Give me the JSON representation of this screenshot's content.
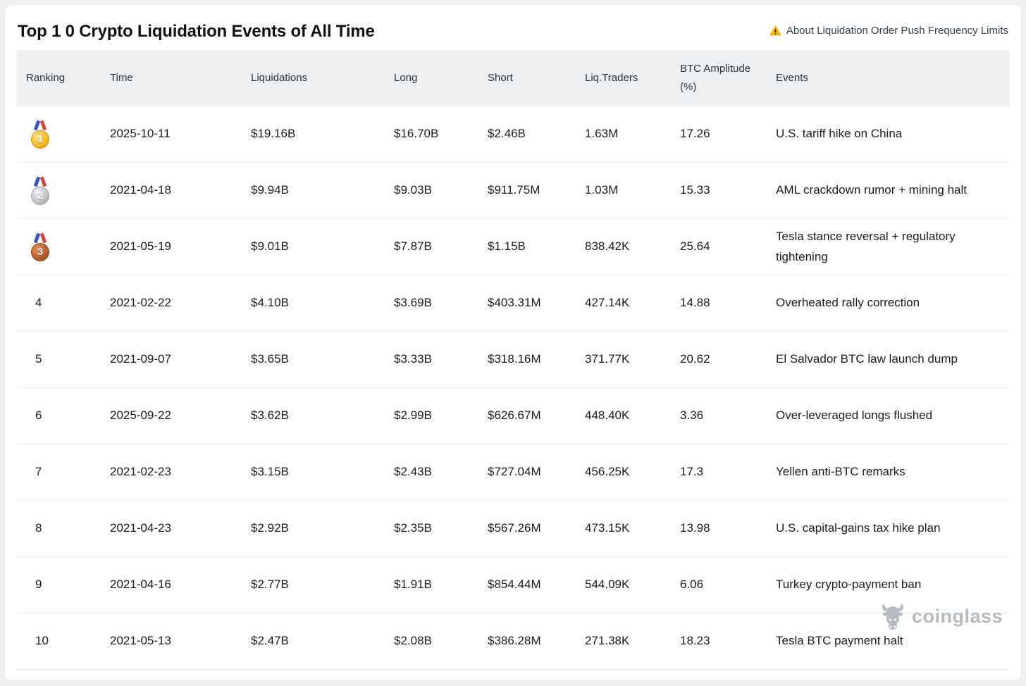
{
  "header": {
    "title": "Top 1 0 Crypto Liquidation Events of All Time",
    "notice_label": "About Liquidation Order Push Frequency Limits"
  },
  "table": {
    "columns": [
      {
        "key": "ranking",
        "label": "Ranking"
      },
      {
        "key": "time",
        "label": "Time"
      },
      {
        "key": "liquidations",
        "label": "Liquidations"
      },
      {
        "key": "long",
        "label": "Long"
      },
      {
        "key": "short",
        "label": "Short"
      },
      {
        "key": "liq_traders",
        "label": "Liq.Traders"
      },
      {
        "key": "btc_amplitude",
        "label": "BTC Amplitude (%)"
      },
      {
        "key": "events",
        "label": "Events"
      }
    ],
    "rows": [
      {
        "ranking": "1",
        "medal": "gold",
        "time": "2025-10-11",
        "liquidations": "$19.16B",
        "long": "$16.70B",
        "short": "$2.46B",
        "liq_traders": "1.63M",
        "btc_amplitude": "17.26",
        "events": "U.S. tariff hike on China"
      },
      {
        "ranking": "2",
        "medal": "silver",
        "time": "2021-04-18",
        "liquidations": "$9.94B",
        "long": "$9.03B",
        "short": "$911.75M",
        "liq_traders": "1.03M",
        "btc_amplitude": "15.33",
        "events": "AML crackdown rumor + mining halt"
      },
      {
        "ranking": "3",
        "medal": "bronze",
        "time": "2021-05-19",
        "liquidations": "$9.01B",
        "long": "$7.87B",
        "short": "$1.15B",
        "liq_traders": "838.42K",
        "btc_amplitude": "25.64",
        "events": "Tesla stance reversal + regulatory tightening"
      },
      {
        "ranking": "4",
        "medal": null,
        "time": "2021-02-22",
        "liquidations": "$4.10B",
        "long": "$3.69B",
        "short": "$403.31M",
        "liq_traders": "427.14K",
        "btc_amplitude": "14.88",
        "events": "Overheated rally correction"
      },
      {
        "ranking": "5",
        "medal": null,
        "time": "2021-09-07",
        "liquidations": "$3.65B",
        "long": "$3.33B",
        "short": "$318.16M",
        "liq_traders": "371.77K",
        "btc_amplitude": "20.62",
        "events": "El Salvador BTC law launch dump"
      },
      {
        "ranking": "6",
        "medal": null,
        "time": "2025-09-22",
        "liquidations": "$3.62B",
        "long": "$2.99B",
        "short": "$626.67M",
        "liq_traders": "448.40K",
        "btc_amplitude": "3.36",
        "events": "Over-leveraged longs flushed"
      },
      {
        "ranking": "7",
        "medal": null,
        "time": "2021-02-23",
        "liquidations": "$3.15B",
        "long": "$2.43B",
        "short": "$727.04M",
        "liq_traders": "456.25K",
        "btc_amplitude": "17.3",
        "events": "Yellen anti-BTC remarks"
      },
      {
        "ranking": "8",
        "medal": null,
        "time": "2021-04-23",
        "liquidations": "$2.92B",
        "long": "$2.35B",
        "short": "$567.26M",
        "liq_traders": "473.15K",
        "btc_amplitude": "13.98",
        "events": "U.S. capital-gains tax hike plan"
      },
      {
        "ranking": "9",
        "medal": null,
        "time": "2021-04-16",
        "liquidations": "$2.77B",
        "long": "$1.91B",
        "short": "$854.44M",
        "liq_traders": "544.09K",
        "btc_amplitude": "6.06",
        "events": "Turkey crypto-payment ban"
      },
      {
        "ranking": "10",
        "medal": null,
        "time": "2021-05-13",
        "liquidations": "$2.47B",
        "long": "$2.08B",
        "short": "$386.28M",
        "liq_traders": "271.38K",
        "btc_amplitude": "18.23",
        "events": "Tesla BTC payment halt"
      }
    ]
  },
  "watermark": {
    "label": "coinglass"
  },
  "colors": {
    "warning_yellow": "#f5b50a",
    "header_bg": "#eef0f2",
    "watermark_gray": "#b7bac0",
    "medal_gold": "#f2b71c",
    "medal_silver": "#bcbec2",
    "medal_bronze": "#b15a25"
  }
}
